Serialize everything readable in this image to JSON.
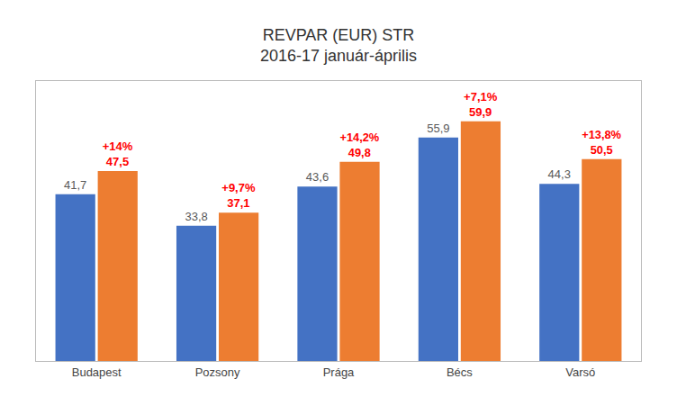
{
  "chart_data": {
    "type": "bar",
    "title": "REVPAR (EUR) STR",
    "subtitle": "2016-17 január-április",
    "categories": [
      "Budapest",
      "Pozsony",
      "Prága",
      "Bécs",
      "Varsó"
    ],
    "series": [
      {
        "color": "#4472C4",
        "values": [
          41.7,
          33.8,
          43.6,
          55.9,
          44.3
        ],
        "value_labels": [
          "41,7",
          "33,8",
          "43,6",
          "55,9",
          "44,3"
        ]
      },
      {
        "color": "#ED7D31",
        "values": [
          47.5,
          37.1,
          49.8,
          59.9,
          50.5
        ],
        "value_labels": [
          "47,5",
          "37,1",
          "49,8",
          "59,9",
          "50,5"
        ],
        "annotations": [
          "+14%",
          "+9,7%",
          "+14,2%",
          "+7,1%",
          "+13,8%"
        ]
      }
    ],
    "ylim": [
      0,
      70
    ],
    "grid": false,
    "data_labels": true,
    "tick_labels": "x"
  }
}
